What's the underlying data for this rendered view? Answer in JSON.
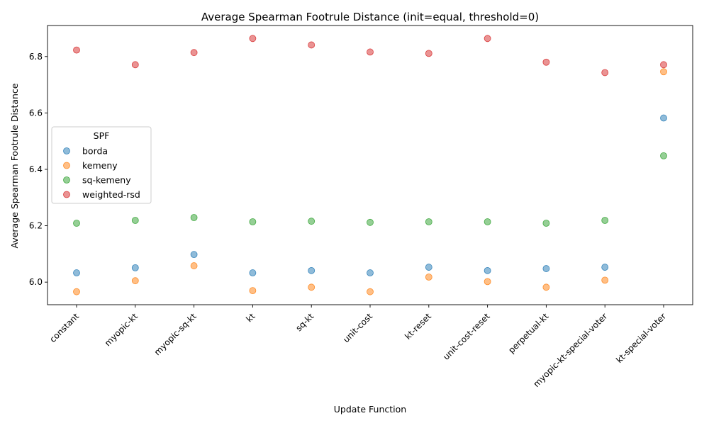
{
  "chart_data": {
    "type": "scatter",
    "title": "Average Spearman Footrule Distance (init=equal, threshold=0)",
    "xlabel": "Update Function",
    "ylabel": "Average Spearman Footrule Distance",
    "categories": [
      "constant",
      "myopic-kt",
      "myopic-sq-kt",
      "kt",
      "sq-kt",
      "unit-cost",
      "kt-reset",
      "unit-cost-reset",
      "perpetual-kt",
      "myopic-kt-special-voter",
      "kt-special-voter"
    ],
    "ylim": [
      5.92,
      6.91
    ],
    "yticks": [
      "6.0",
      "6.2",
      "6.4",
      "6.6",
      "6.8"
    ],
    "grid": false,
    "legend": {
      "title": "SPF",
      "placement": "center-left"
    },
    "series": [
      {
        "name": "borda",
        "color": "#1f77b4",
        "values": [
          6.033,
          6.051,
          6.098,
          6.033,
          6.041,
          6.033,
          6.053,
          6.041,
          6.048,
          6.053,
          6.582
        ]
      },
      {
        "name": "kemeny",
        "color": "#ff7f0e",
        "values": [
          5.966,
          6.005,
          6.058,
          5.97,
          5.982,
          5.966,
          6.018,
          6.002,
          5.982,
          6.007,
          6.746
        ]
      },
      {
        "name": "sq-kemeny",
        "color": "#2ca02c",
        "values": [
          6.209,
          6.219,
          6.229,
          6.214,
          6.216,
          6.212,
          6.214,
          6.214,
          6.209,
          6.219,
          6.448
        ]
      },
      {
        "name": "weighted-rsd",
        "color": "#d62728",
        "values": [
          6.823,
          6.771,
          6.814,
          6.864,
          6.841,
          6.816,
          6.811,
          6.864,
          6.78,
          6.743,
          6.771
        ]
      }
    ]
  }
}
